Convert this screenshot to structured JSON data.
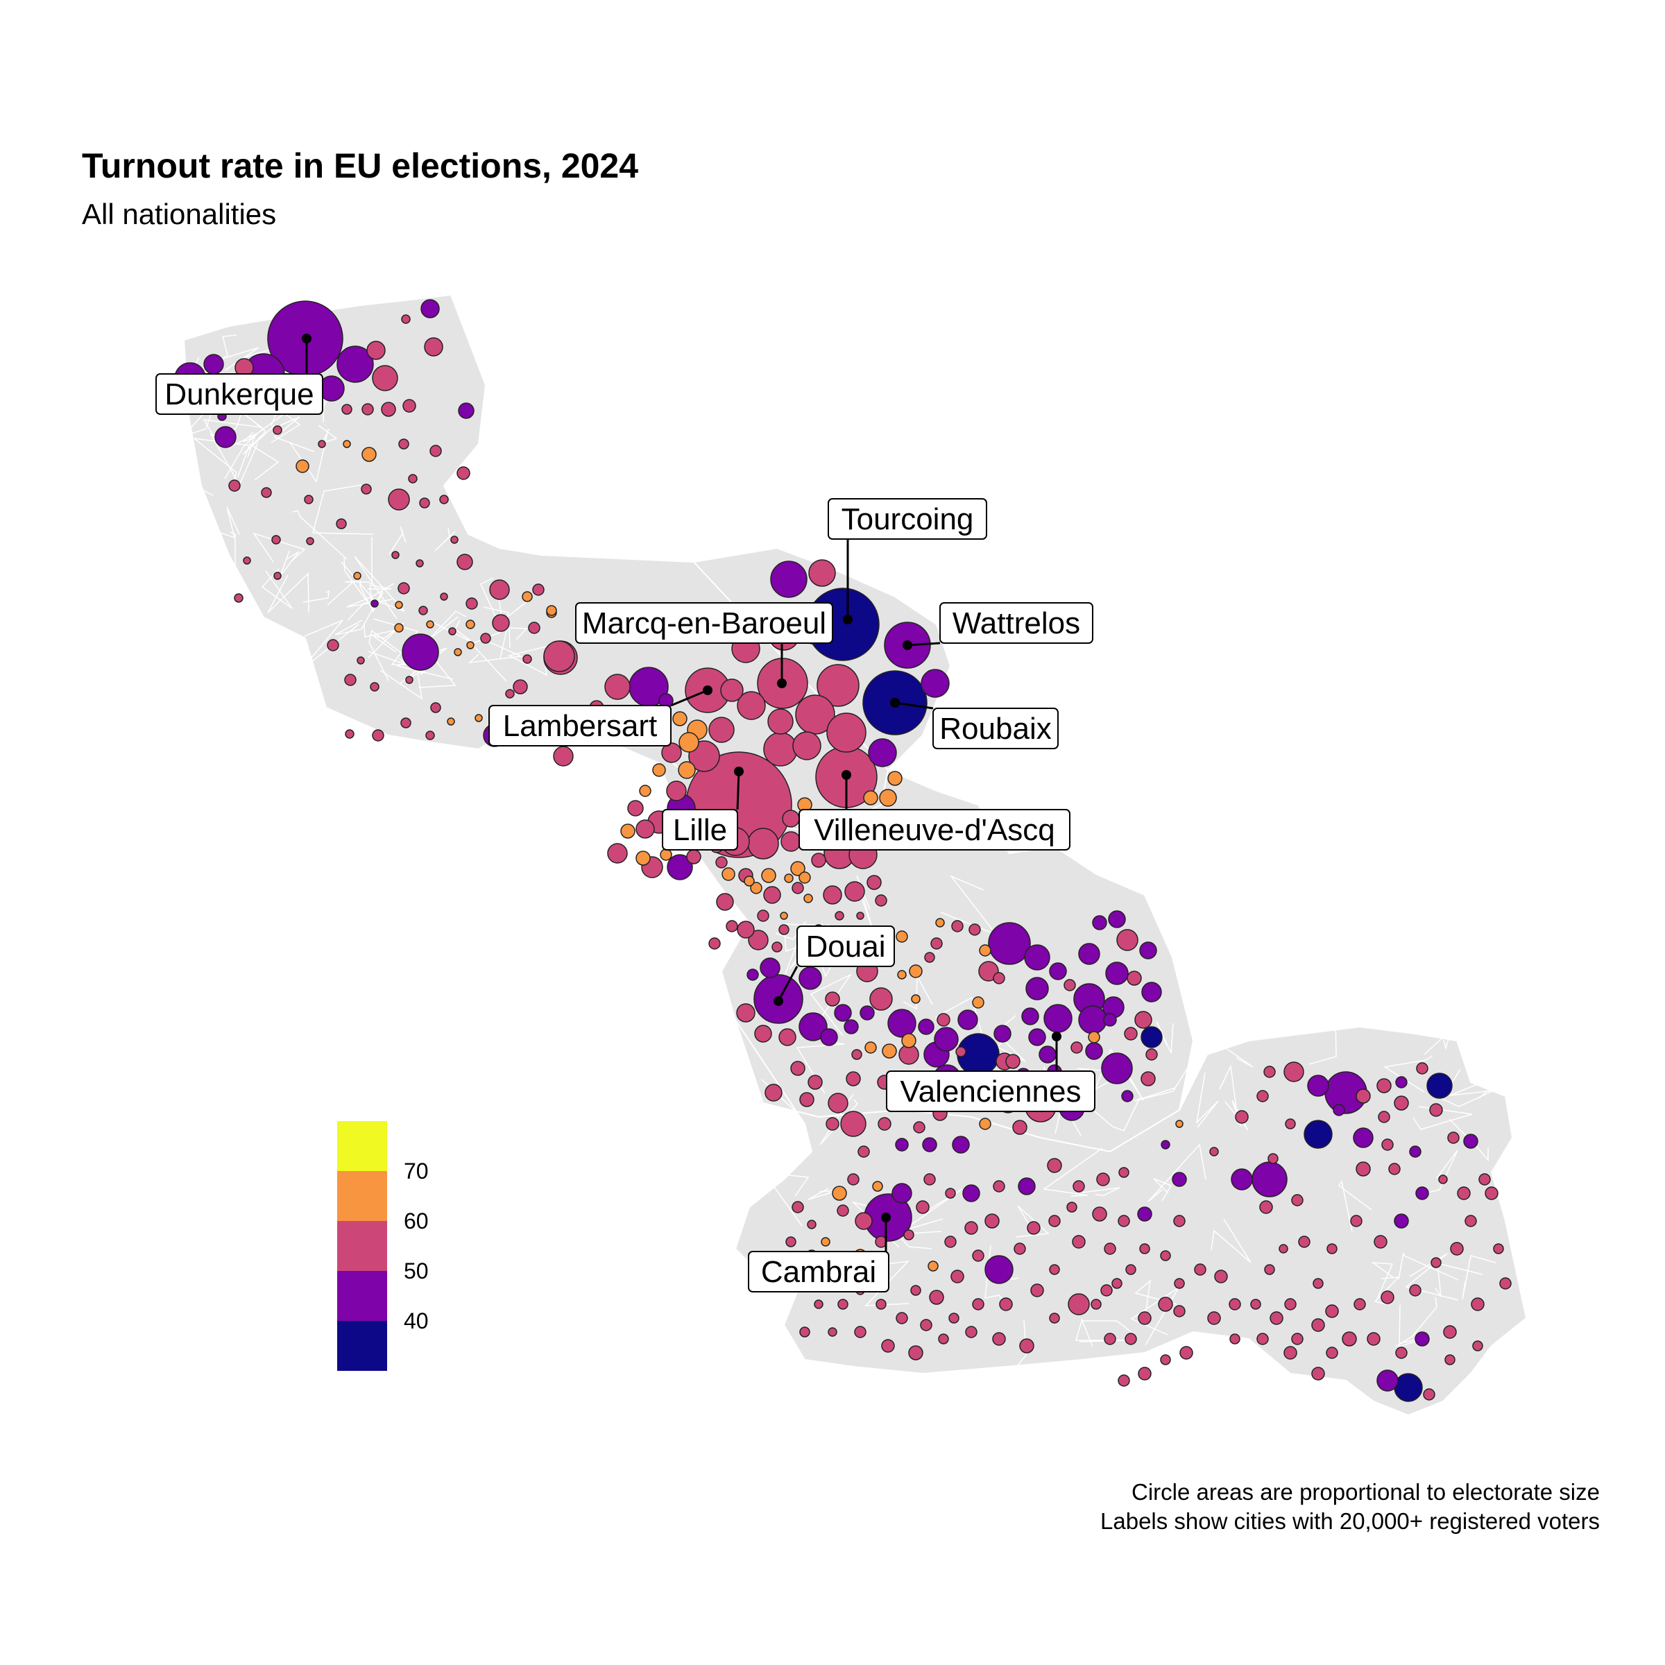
{
  "title": "Turnout rate in EU elections, 2024",
  "subtitle": "All nationalities",
  "caption": {
    "line1": "Circle areas are proportional to electorate size",
    "line2": "Labels show cities with 20,000+ registered voters"
  },
  "legend": {
    "bins": [
      {
        "from": 30,
        "to": 40,
        "color": "#0d0887"
      },
      {
        "from": 40,
        "to": 50,
        "color": "#7e03a8"
      },
      {
        "from": 50,
        "to": 60,
        "color": "#cc4778"
      },
      {
        "from": 60,
        "to": 70,
        "color": "#f89540"
      },
      {
        "from": 70,
        "to": 80,
        "color": "#f0f921"
      }
    ],
    "ticks": [
      "40",
      "50",
      "60",
      "70"
    ]
  },
  "colors": {
    "land": "#e4e4e4",
    "border": "#ffffff",
    "circle_stroke": "#222222"
  },
  "chart_data": {
    "type": "bubble-map",
    "value": "turnout (%)",
    "size": "electorate size",
    "labeled_cities": [
      {
        "name": "Dunkerque",
        "turnout_bin": "40-50"
      },
      {
        "name": "Tourcoing",
        "turnout_bin": "<40"
      },
      {
        "name": "Wattrelos",
        "turnout_bin": "40-50"
      },
      {
        "name": "Marcq-en-Baroeul",
        "turnout_bin": "50-60"
      },
      {
        "name": "Lambersart",
        "turnout_bin": "50-60"
      },
      {
        "name": "Roubaix",
        "turnout_bin": "<40"
      },
      {
        "name": "Lille",
        "turnout_bin": "50-60"
      },
      {
        "name": "Villeneuve-d'Ascq",
        "turnout_bin": "50-60"
      },
      {
        "name": "Douai",
        "turnout_bin": "40-50"
      },
      {
        "name": "Valenciennes",
        "turnout_bin": "50-60"
      },
      {
        "name": "Cambrai",
        "turnout_bin": "40-50"
      }
    ]
  }
}
